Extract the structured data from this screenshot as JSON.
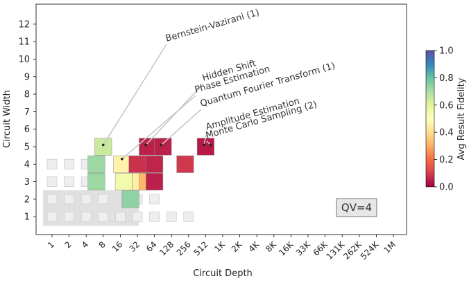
{
  "chart_data": {
    "type": "heatmap",
    "title": "",
    "xlabel": "Circuit Depth",
    "ylabel": "Circuit Width",
    "x_ticks": [
      "1",
      "2",
      "4",
      "8",
      "16",
      "32",
      "64",
      "128",
      "256",
      "512",
      "1K",
      "2K",
      "4K",
      "8K",
      "16K",
      "33K",
      "66K",
      "131K",
      "262K",
      "524K",
      "1M"
    ],
    "y_ticks": [
      "1",
      "2",
      "3",
      "4",
      "5",
      "6",
      "7",
      "8",
      "9",
      "10",
      "11",
      "12"
    ],
    "ylim": [
      0,
      13
    ],
    "colorbar": {
      "label": "Avg Result Fidelity",
      "range": [
        0.0,
        1.0
      ],
      "ticks": [
        "0.0",
        "0.2",
        "0.4",
        "0.6",
        "0.8",
        "1.0"
      ],
      "colormap": "Spectral"
    },
    "volume_label": "QV=4",
    "quantum_volume": 4,
    "volume_region": {
      "max_depth_index": 5,
      "max_width": 2
    },
    "empty_cells": [
      {
        "depth_index": 0,
        "width": 1
      },
      {
        "depth_index": 1,
        "width": 1
      },
      {
        "depth_index": 2,
        "width": 1
      },
      {
        "depth_index": 3,
        "width": 1
      },
      {
        "depth_index": 4,
        "width": 1
      },
      {
        "depth_index": 5,
        "width": 1
      },
      {
        "depth_index": 6,
        "width": 1
      },
      {
        "depth_index": 7,
        "width": 1
      },
      {
        "depth_index": 8,
        "width": 1
      },
      {
        "depth_index": 0,
        "width": 2
      },
      {
        "depth_index": 1,
        "width": 2
      },
      {
        "depth_index": 2,
        "width": 2
      },
      {
        "depth_index": 3,
        "width": 2
      },
      {
        "depth_index": 5,
        "width": 2
      },
      {
        "depth_index": 6,
        "width": 2
      },
      {
        "depth_index": 0,
        "width": 3
      },
      {
        "depth_index": 1,
        "width": 3
      },
      {
        "depth_index": 2,
        "width": 3
      },
      {
        "depth_index": 0,
        "width": 4
      },
      {
        "depth_index": 1,
        "width": 4
      },
      {
        "depth_index": 2,
        "width": 4
      }
    ],
    "cells": [
      {
        "depth_index": 3.0,
        "width": 5,
        "fidelity": 0.65
      },
      {
        "depth_index": 2.6,
        "width": 4,
        "fidelity": 0.72
      },
      {
        "depth_index": 2.6,
        "width": 3,
        "fidelity": 0.72
      },
      {
        "depth_index": 4.1,
        "width": 4,
        "fidelity": 0.46
      },
      {
        "depth_index": 4.2,
        "width": 3,
        "fidelity": 0.55
      },
      {
        "depth_index": 5.2,
        "width": 3,
        "fidelity": 0.45
      },
      {
        "depth_index": 5.6,
        "width": 3,
        "fidelity": 0.32
      },
      {
        "depth_index": 6.0,
        "width": 3,
        "fidelity": 0.05
      },
      {
        "depth_index": 5.0,
        "width": 4,
        "fidelity": 0.08
      },
      {
        "depth_index": 6.0,
        "width": 4,
        "fidelity": 0.06
      },
      {
        "depth_index": 7.8,
        "width": 4,
        "fidelity": 0.09
      },
      {
        "depth_index": 5.6,
        "width": 5,
        "fidelity": 0.05
      },
      {
        "depth_index": 6.5,
        "width": 5,
        "fidelity": 0.05
      },
      {
        "depth_index": 9.0,
        "width": 5,
        "fidelity": 0.04
      },
      {
        "depth_index": 4.6,
        "width": 2,
        "fidelity": 0.74
      }
    ],
    "annotations": [
      {
        "text": "Bernstein-Vazirani (1)",
        "depth_index": 3.0,
        "width": 5.1
      },
      {
        "text": "Hidden Shift",
        "depth_index": 5.5,
        "width": 5.1
      },
      {
        "text": "Phase Estimation",
        "depth_index": 4.1,
        "width": 4.3
      },
      {
        "text": "Quantum Fourier Transform (1)",
        "depth_index": 6.4,
        "width": 5.1
      },
      {
        "text": "Amplitude Estimation",
        "depth_index": 8.9,
        "width": 5.1
      },
      {
        "text": "Monte Carlo Sampling (2)",
        "depth_index": 9.3,
        "width": 5.1
      }
    ]
  }
}
